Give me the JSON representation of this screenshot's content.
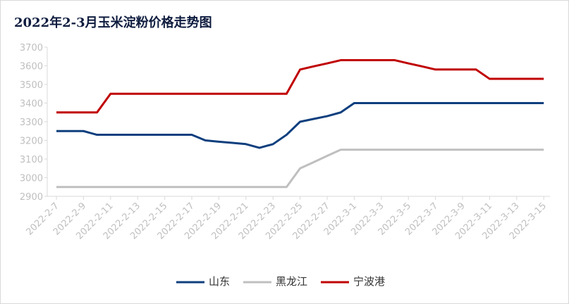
{
  "chart_data": {
    "type": "line",
    "title": "2022年2-3月玉米淀粉价格走势图",
    "categories": [
      "2022-2-7",
      null,
      "2022-2-9",
      null,
      "2022-2-11",
      null,
      "2022-2-13",
      null,
      "2022-2-15",
      null,
      "2022-2-17",
      null,
      "2022-2-19",
      null,
      "2022-2-21",
      null,
      "2022-2-23",
      null,
      "2022-2-25",
      null,
      "2022-2-27",
      null,
      "2022-3-1",
      null,
      "2022-3-3",
      null,
      "2022-3-5",
      null,
      "2022-3-7",
      null,
      "2022-3-9",
      null,
      "2022-3-11",
      null,
      "2022-3-13",
      null,
      "2022-3-15"
    ],
    "series": [
      {
        "name": "山东",
        "color": "#0e3f7e",
        "values": [
          3250,
          3250,
          3250,
          3230,
          3230,
          3230,
          3230,
          3230,
          3230,
          3230,
          3230,
          3200,
          3193,
          3187,
          3180,
          3160,
          3180,
          3230,
          3300,
          3315,
          3330,
          3350,
          3400,
          3400,
          3400,
          3400,
          3400,
          3400,
          3400,
          3400,
          3400,
          3400,
          3400,
          3400,
          3400,
          3400,
          3400
        ]
      },
      {
        "name": "黑龙江",
        "color": "#bfbfbf",
        "values": [
          2950,
          2950,
          2950,
          2950,
          2950,
          2950,
          2950,
          2950,
          2950,
          2950,
          2950,
          2950,
          2950,
          2950,
          2950,
          2950,
          2950,
          2950,
          3050,
          3083,
          3117,
          3150,
          3150,
          3150,
          3150,
          3150,
          3150,
          3150,
          3150,
          3150,
          3150,
          3150,
          3150,
          3150,
          3150,
          3150,
          3150
        ]
      },
      {
        "name": "宁波港",
        "color": "#c00000",
        "values": [
          3350,
          3350,
          3350,
          3350,
          3450,
          3450,
          3450,
          3450,
          3450,
          3450,
          3450,
          3450,
          3450,
          3450,
          3450,
          3450,
          3450,
          3450,
          3580,
          3597,
          3613,
          3630,
          3630,
          3630,
          3630,
          3630,
          3613,
          3597,
          3580,
          3580,
          3580,
          3580,
          3530,
          3530,
          3530,
          3530,
          3530
        ]
      }
    ],
    "ylim": [
      2900,
      3700
    ],
    "yticks": [
      2900,
      3000,
      3100,
      3200,
      3300,
      3400,
      3500,
      3600,
      3700
    ]
  }
}
